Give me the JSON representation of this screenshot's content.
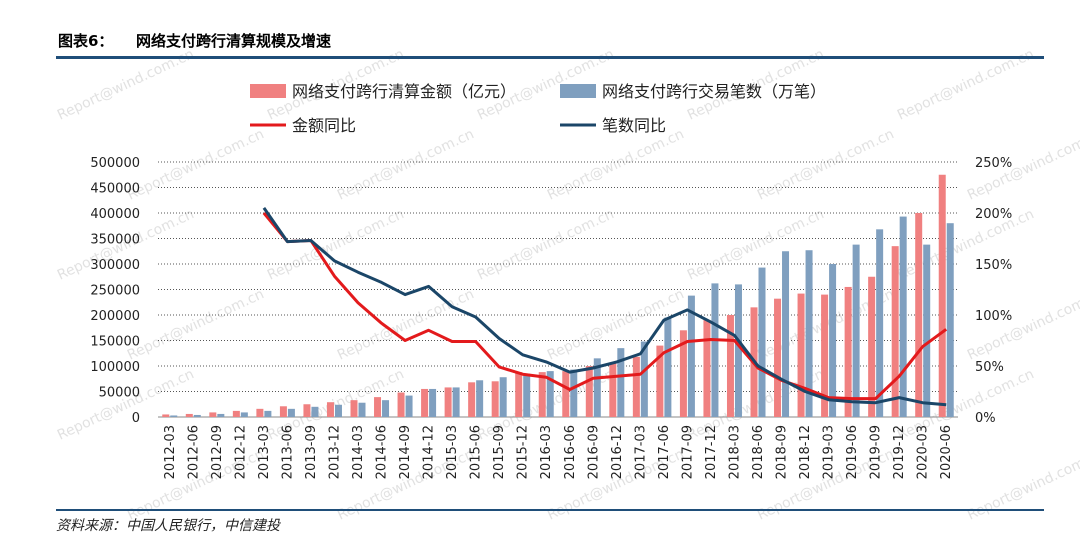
{
  "header": {
    "label": "图表6：",
    "title": "网络支付跨行清算规模及增速"
  },
  "footer": {
    "source": "资料来源：中国人民银行，中信建投"
  },
  "watermark": "Report@wind.com.cn",
  "colors": {
    "bar1": "#f08080",
    "bar2": "#7f9fbf",
    "line1": "#e31a1c",
    "line2": "#1b4668",
    "rule": "#1f4e79"
  },
  "chart_data": {
    "type": "bar",
    "categories": [
      "2012-03",
      "2012-06",
      "2012-09",
      "2012-12",
      "2013-03",
      "2013-06",
      "2013-09",
      "2013-12",
      "2014-03",
      "2014-06",
      "2014-09",
      "2014-12",
      "2015-03",
      "2015-06",
      "2015-09",
      "2015-12",
      "2016-03",
      "2016-06",
      "2016-09",
      "2016-12",
      "2017-03",
      "2017-06",
      "2017-09",
      "2017-12",
      "2018-03",
      "2018-06",
      "2018-09",
      "2018-12",
      "2019-03",
      "2019-06",
      "2019-09",
      "2019-12",
      "2020-03",
      "2020-06"
    ],
    "y_left": {
      "ylim": [
        0,
        500000
      ],
      "ticks": [
        "0",
        "50000",
        "100000",
        "150000",
        "200000",
        "250000",
        "300000",
        "350000",
        "400000",
        "450000",
        "500000"
      ]
    },
    "y_right": {
      "ylim": [
        0,
        2.5
      ],
      "ticks": [
        "0%",
        "50%",
        "100%",
        "150%",
        "200%",
        "250%"
      ]
    },
    "grid": "dotted horizontal",
    "legend_position": "top",
    "series": [
      {
        "name": "网络支付跨行清算金额（亿元）",
        "type": "bar",
        "axis": "left",
        "values": [
          5000,
          6000,
          9000,
          12000,
          16000,
          21000,
          25000,
          29000,
          33000,
          39000,
          48000,
          55000,
          58000,
          68000,
          70000,
          88000,
          88000,
          90000,
          100000,
          105000,
          118000,
          140000,
          170000,
          190000,
          200000,
          215000,
          232000,
          242000,
          240000,
          255000,
          275000,
          335000,
          400000,
          475000
        ]
      },
      {
        "name": "网络支付跨行交易笔数（万笔）",
        "type": "bar",
        "axis": "left",
        "values": [
          3000,
          4000,
          6000,
          9000,
          12000,
          16000,
          20000,
          24000,
          28000,
          33000,
          42000,
          55000,
          58000,
          72000,
          78000,
          85000,
          90000,
          93000,
          115000,
          135000,
          148000,
          195000,
          238000,
          262000,
          260000,
          293000,
          325000,
          327000,
          300000,
          338000,
          368000,
          393000,
          338000,
          380000
        ]
      },
      {
        "name": "金额同比",
        "type": "line",
        "axis": "right",
        "values": [
          null,
          null,
          null,
          null,
          2.0,
          1.72,
          1.73,
          1.38,
          1.12,
          0.92,
          0.75,
          0.85,
          0.74,
          0.74,
          0.49,
          0.42,
          0.39,
          0.27,
          0.38,
          0.4,
          0.42,
          0.63,
          0.74,
          0.76,
          0.75,
          0.48,
          0.36,
          0.28,
          0.19,
          0.18,
          0.18,
          0.4,
          0.69,
          0.86
        ]
      },
      {
        "name": "笔数同比",
        "type": "line",
        "axis": "right",
        "values": [
          null,
          null,
          null,
          null,
          2.05,
          1.72,
          1.73,
          1.53,
          1.42,
          1.32,
          1.2,
          1.28,
          1.08,
          0.98,
          0.77,
          0.61,
          0.54,
          0.44,
          0.48,
          0.54,
          0.62,
          0.95,
          1.05,
          0.93,
          0.8,
          0.5,
          0.37,
          0.25,
          0.17,
          0.15,
          0.14,
          0.19,
          0.14,
          0.12
        ]
      }
    ]
  }
}
